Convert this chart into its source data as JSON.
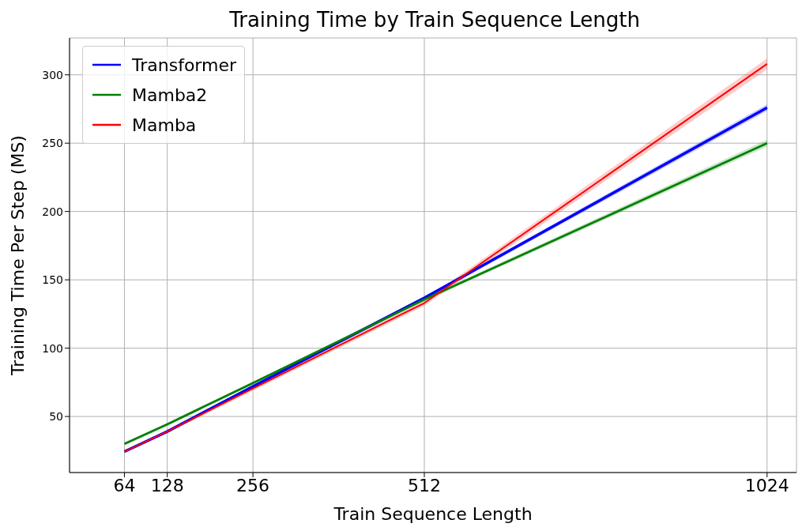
{
  "chart_data": {
    "type": "line",
    "title": "Training Time by Train Sequence Length",
    "xlabel": "Train Sequence Length",
    "ylabel": "Training Time Per Step (MS)",
    "x": [
      64,
      128,
      256,
      512,
      1024
    ],
    "series": [
      {
        "name": "Transformer",
        "color": "#0000ff",
        "values": [
          24.3,
          39,
          72,
          136.8,
          276
        ],
        "lower": [
          23.5,
          38,
          71,
          135.5,
          273.5
        ],
        "upper": [
          25,
          40,
          73,
          138,
          278.5
        ]
      },
      {
        "name": "Mamba2",
        "color": "#008000",
        "values": [
          30,
          44.3,
          74.5,
          135.6,
          250
        ],
        "lower": [
          29,
          43.3,
          73.5,
          134.5,
          247.5
        ],
        "upper": [
          31,
          45.3,
          75.5,
          136.8,
          252.5
        ]
      },
      {
        "name": "Mamba",
        "color": "#ff0000",
        "values": [
          24.3,
          39,
          70.5,
          133,
          308
        ],
        "lower": [
          23.3,
          38,
          69,
          131,
          304
        ],
        "upper": [
          25.3,
          40,
          72,
          135,
          312
        ]
      }
    ],
    "xlim": [
      -18,
      1068
    ],
    "xticks": [
      64,
      128,
      256,
      512,
      1024
    ],
    "ylim": [
      9,
      327
    ],
    "yticks": [
      50,
      100,
      150,
      200,
      250,
      300
    ],
    "grid": true,
    "legend": "top left",
    "marker": "none",
    "line_style": "solid"
  }
}
